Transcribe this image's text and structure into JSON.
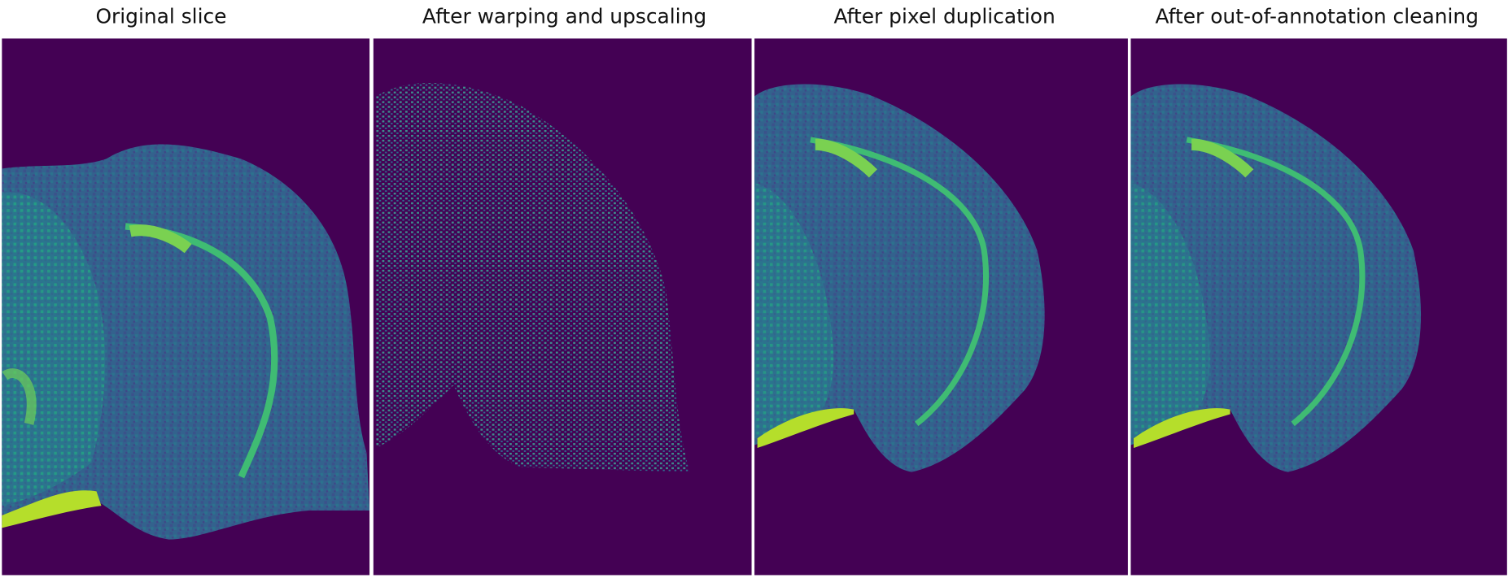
{
  "panels": [
    {
      "title": "Original slice"
    },
    {
      "title": "After warping and upscaling"
    },
    {
      "title": "After pixel duplication"
    },
    {
      "title": "After out-of-annotation cleaning"
    }
  ]
}
